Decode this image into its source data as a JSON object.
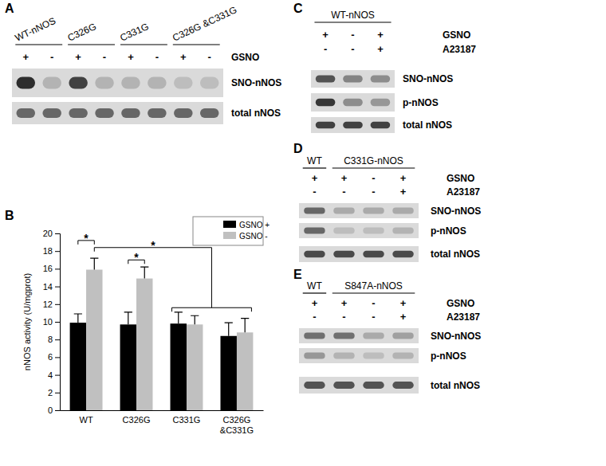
{
  "chart_data": {
    "type": "bar",
    "panel": "B",
    "y_label": "nNOS activity (U/mgprot)",
    "categories": [
      "WT",
      "C326G",
      "C331G",
      "C326G\n&C331G"
    ],
    "series": [
      {
        "name": "GSNO +",
        "color": "#000000",
        "values": [
          9.9,
          9.7,
          9.8,
          8.4
        ],
        "errors": [
          1.0,
          1.4,
          1.3,
          1.5
        ]
      },
      {
        "name": "GSNO -",
        "color": "#c0c0c0",
        "values": [
          15.9,
          14.9,
          9.7,
          8.8
        ],
        "errors": [
          1.3,
          1.3,
          1.0,
          1.6
        ]
      }
    ],
    "ylim": [
      0,
      20
    ],
    "yticks": [
      0,
      2,
      4,
      6,
      8,
      10,
      12,
      14,
      16,
      18,
      20
    ],
    "legend": "upper right",
    "significance": [
      {
        "label": "*",
        "left": {
          "category": 0,
          "series": 0
        },
        "right": {
          "category": 0,
          "series": 1
        },
        "y": 19.2
      },
      {
        "label": "*",
        "left": {
          "category": 1,
          "series": 0
        },
        "right": {
          "category": 1,
          "series": 1
        },
        "y": 17.0
      },
      {
        "label": "*",
        "left": {
          "category": 0,
          "series": 1
        },
        "group": [
          2,
          3
        ],
        "y": 18.4,
        "group_y": 11.6
      }
    ]
  },
  "intensity_range": [
    0,
    100
  ],
  "blots": [
    {
      "panel": "A",
      "groups": [
        {
          "label": "WT-nNOS",
          "span": [
            0,
            1
          ]
        },
        {
          "label": "C326G",
          "span": [
            2,
            3
          ]
        },
        {
          "label": "C331G",
          "span": [
            4,
            5
          ]
        },
        {
          "label": "C326G &C331G",
          "span": [
            6,
            7
          ]
        }
      ],
      "conditions": [
        {
          "name": "GSNO",
          "values": [
            "+",
            "-",
            "+",
            "-",
            "+",
            "-",
            "+",
            "-"
          ]
        }
      ],
      "rows": [
        {
          "name": "SNO-nNOS",
          "intensity": [
            90,
            20,
            80,
            20,
            20,
            20,
            15,
            15
          ]
        },
        {
          "name": "total nNOS",
          "intensity": [
            60,
            60,
            60,
            60,
            60,
            60,
            60,
            60
          ]
        }
      ]
    },
    {
      "panel": "C",
      "groups": [
        {
          "label": "WT-nNOS",
          "span": [
            0,
            2
          ]
        }
      ],
      "conditions": [
        {
          "name": "GSNO",
          "values": [
            "+",
            "-",
            "+"
          ]
        },
        {
          "name": "A23187",
          "values": [
            "-",
            "-",
            "+"
          ]
        }
      ],
      "rows": [
        {
          "name": "SNO-nNOS",
          "intensity": [
            70,
            45,
            40
          ]
        },
        {
          "name": "p-nNOS",
          "intensity": [
            85,
            40,
            35
          ]
        },
        {
          "name": "total nNOS",
          "intensity": [
            80,
            80,
            80
          ]
        }
      ]
    },
    {
      "panel": "D",
      "groups": [
        {
          "label": "WT",
          "span": [
            0,
            0
          ]
        },
        {
          "label": "C331G-nNOS",
          "span": [
            1,
            3
          ]
        }
      ],
      "conditions": [
        {
          "name": "GSNO",
          "values": [
            "+",
            "+",
            "-",
            "+"
          ]
        },
        {
          "name": "A23187",
          "values": [
            "-",
            "-",
            "-",
            "+"
          ]
        }
      ],
      "rows": [
        {
          "name": "SNO-nNOS",
          "intensity": [
            60,
            25,
            25,
            25
          ]
        },
        {
          "name": "p-nNOS",
          "intensity": [
            60,
            15,
            15,
            20
          ]
        },
        {
          "name": "total nNOS",
          "intensity": [
            75,
            75,
            75,
            75
          ]
        }
      ]
    },
    {
      "panel": "E",
      "groups": [
        {
          "label": "WT",
          "span": [
            0,
            0
          ]
        },
        {
          "label": "S847A-nNOS",
          "span": [
            1,
            3
          ]
        }
      ],
      "conditions": [
        {
          "name": "GSNO",
          "values": [
            "+",
            "+",
            "-",
            "+"
          ]
        },
        {
          "name": "A23187",
          "values": [
            "-",
            "-",
            "-",
            "+"
          ]
        }
      ],
      "rows": [
        {
          "name": "SNO-nNOS",
          "intensity": [
            55,
            55,
            25,
            30
          ]
        },
        {
          "name": "p-nNOS",
          "intensity": [
            35,
            20,
            15,
            20
          ]
        },
        {
          "name": "total nNOS",
          "intensity": [
            70,
            70,
            70,
            70
          ]
        }
      ]
    }
  ]
}
